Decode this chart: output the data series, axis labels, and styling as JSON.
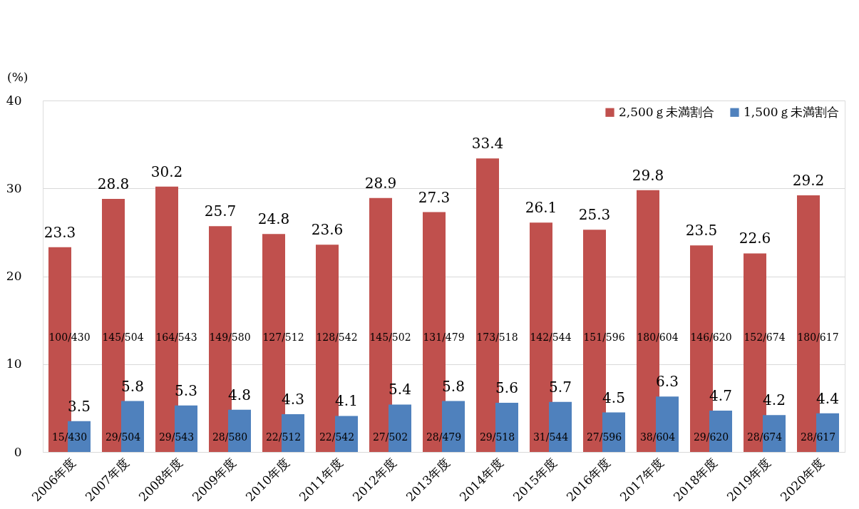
{
  "chart_data": {
    "type": "bar",
    "ylabel": "(%)",
    "categories": [
      "2006年度",
      "2007年度",
      "2008年度",
      "2009年度",
      "2010年度",
      "2011年度",
      "2012年度",
      "2013年度",
      "2014年度",
      "2015年度",
      "2016年度",
      "2017年度",
      "2018年度",
      "2019年度",
      "2020年度"
    ],
    "series": [
      {
        "name": "2,500ｇ未満割合",
        "color": "#c0504d",
        "values": [
          23.3,
          28.8,
          30.2,
          25.7,
          24.8,
          23.6,
          28.9,
          27.3,
          33.4,
          26.1,
          25.3,
          29.8,
          23.5,
          22.6,
          29.2
        ]
      },
      {
        "name": "1,500ｇ未満割合",
        "color": "#4f81bd",
        "values": [
          3.5,
          5.8,
          5.3,
          4.8,
          4.3,
          4.1,
          5.4,
          5.8,
          5.6,
          5.7,
          4.5,
          6.3,
          4.7,
          4.2,
          4.4
        ]
      }
    ],
    "ylim": [
      0,
      40
    ],
    "yticks": [
      0,
      10,
      20,
      30,
      40
    ],
    "grid": "y",
    "legend": "top right",
    "data_labels": true,
    "annotations": [
      {
        "text": "100/430",
        "x": "2006年度",
        "y": 13
      },
      {
        "text": "145/504",
        "x": "2007年度",
        "y": 13
      },
      {
        "text": "164/543",
        "x": "2008年度",
        "y": 13
      },
      {
        "text": "149/580",
        "x": "2009年度",
        "y": 13
      },
      {
        "text": "127/512",
        "x": "2010年度",
        "y": 13
      },
      {
        "text": "128/542",
        "x": "2011年度",
        "y": 13
      },
      {
        "text": "145/502",
        "x": "2012年度",
        "y": 13
      },
      {
        "text": "131/479",
        "x": "2013年度",
        "y": 13
      },
      {
        "text": "173/518",
        "x": "2014年度",
        "y": 13
      },
      {
        "text": "142/544",
        "x": "2015年度",
        "y": 13
      },
      {
        "text": "151/596",
        "x": "2016年度",
        "y": 13
      },
      {
        "text": "180/604",
        "x": "2017年度",
        "y": 13
      },
      {
        "text": "146/620",
        "x": "2018年度",
        "y": 13
      },
      {
        "text": "152/674",
        "x": "2019年度",
        "y": 13
      },
      {
        "text": "180/617",
        "x": "2020年度",
        "y": 13
      },
      {
        "text": "15/430",
        "x": "2006年度",
        "y": 1.6
      },
      {
        "text": "29/504",
        "x": "2007年度",
        "y": 1.6
      },
      {
        "text": "29/543",
        "x": "2008年度",
        "y": 1.6
      },
      {
        "text": "28/580",
        "x": "2009年度",
        "y": 1.6
      },
      {
        "text": "22/512",
        "x": "2010年度",
        "y": 1.6
      },
      {
        "text": "22/542",
        "x": "2011年度",
        "y": 1.6
      },
      {
        "text": "27/502",
        "x": "2012年度",
        "y": 1.6
      },
      {
        "text": "28/479",
        "x": "2013年度",
        "y": 1.6
      },
      {
        "text": "29/518",
        "x": "2014年度",
        "y": 1.6
      },
      {
        "text": "31/544",
        "x": "2015年度",
        "y": 1.6
      },
      {
        "text": "27/596",
        "x": "2016年度",
        "y": 1.6
      },
      {
        "text": "38/604",
        "x": "2017年度",
        "y": 1.6
      },
      {
        "text": "29/620",
        "x": "2018年度",
        "y": 1.6
      },
      {
        "text": "28/674",
        "x": "2019年度",
        "y": 1.6
      },
      {
        "text": "28/617",
        "x": "2020年度",
        "y": 1.6
      }
    ]
  }
}
